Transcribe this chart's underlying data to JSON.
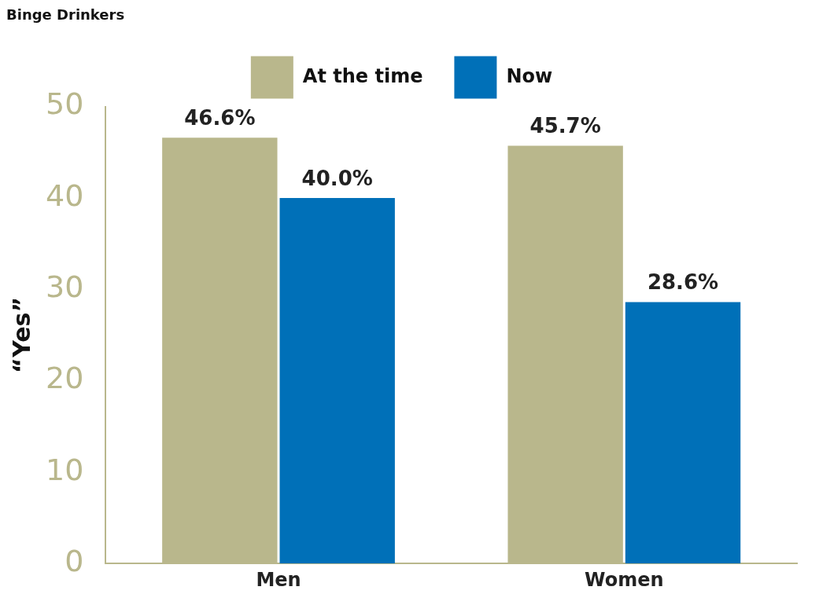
{
  "chart_data": {
    "type": "bar",
    "title": "Binge Drinkers",
    "ylabel": "“Yes”",
    "categories": [
      "Men",
      "Women"
    ],
    "series": [
      {
        "name": "At the time",
        "color": "#b9b78c",
        "values": [
          46.6,
          45.7
        ],
        "value_labels": [
          "46.6%",
          "45.7%"
        ]
      },
      {
        "name": "Now",
        "color": "#0070b8",
        "values": [
          40.0,
          28.6
        ],
        "value_labels": [
          "40.0%",
          "28.6%"
        ]
      }
    ],
    "ylim": [
      0,
      50
    ],
    "yticks": [
      0,
      10,
      20,
      30,
      40,
      50
    ],
    "grid": false,
    "legend": "top"
  }
}
